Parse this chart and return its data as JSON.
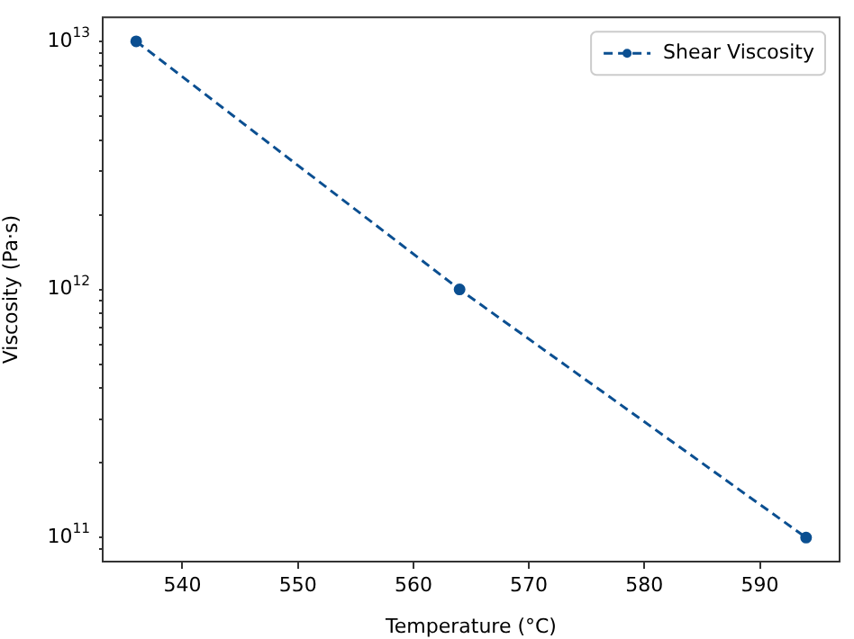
{
  "chart_data": {
    "type": "line",
    "xlabel": "Temperature (°C)",
    "ylabel": "Viscosity (Pa·s)",
    "x": [
      536,
      564,
      594
    ],
    "series": [
      {
        "name": "Shear Viscosity",
        "color": "#0b4f91",
        "values": [
          10000000000000.0,
          1000000000000.0,
          100000000000.0
        ]
      }
    ],
    "xlim": [
      533.1,
      596.9
    ],
    "xticks": [
      540,
      550,
      560,
      570,
      580,
      590
    ],
    "ylim": [
      80000000000.0,
      12500000000000.0
    ],
    "yticks": [
      {
        "value": 90000000000.0,
        "label": null
      },
      {
        "value": 100000000000.0,
        "label": "10$^{11}$"
      },
      {
        "value": 200000000000.0,
        "label": null
      },
      {
        "value": 300000000000.0,
        "label": null
      },
      {
        "value": 400000000000.0,
        "label": null
      },
      {
        "value": 500000000000.0,
        "label": null
      },
      {
        "value": 600000000000.0,
        "label": null
      },
      {
        "value": 700000000000.0,
        "label": null
      },
      {
        "value": 800000000000.0,
        "label": null
      },
      {
        "value": 900000000000.0,
        "label": null
      },
      {
        "value": 1000000000000.0,
        "label": "10$^{12}$"
      },
      {
        "value": 2000000000000.0,
        "label": null
      },
      {
        "value": 3000000000000.0,
        "label": null
      },
      {
        "value": 4000000000000.0,
        "label": null
      },
      {
        "value": 5000000000000.0,
        "label": null
      },
      {
        "value": 6000000000000.0,
        "label": null
      },
      {
        "value": 7000000000000.0,
        "label": null
      },
      {
        "value": 8000000000000.0,
        "label": null
      },
      {
        "value": 9000000000000.0,
        "label": null
      },
      {
        "value": 10000000000000.0,
        "label": "10$^{13}$"
      }
    ],
    "log": true,
    "grid": false,
    "legend": "top right",
    "marker": "circle",
    "line_style": "dashed"
  }
}
